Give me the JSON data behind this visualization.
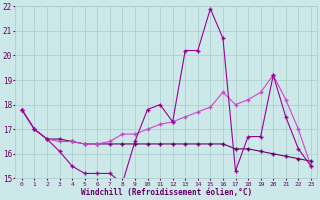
{
  "xlabel": "Windchill (Refroidissement éolien,°C)",
  "x": [
    0,
    1,
    2,
    3,
    4,
    5,
    6,
    7,
    8,
    9,
    10,
    11,
    12,
    13,
    14,
    15,
    16,
    17,
    18,
    19,
    20,
    21,
    22,
    23
  ],
  "line1": [
    17.8,
    17.0,
    16.6,
    16.1,
    15.5,
    15.2,
    15.2,
    15.2,
    14.8,
    16.5,
    17.8,
    18.0,
    17.3,
    20.2,
    20.2,
    21.9,
    20.7,
    15.3,
    16.7,
    16.7,
    19.2,
    17.5,
    16.2,
    15.5
  ],
  "line2": [
    17.8,
    17.0,
    16.6,
    16.5,
    16.5,
    16.4,
    16.4,
    16.5,
    16.8,
    16.8,
    17.0,
    17.2,
    17.3,
    17.5,
    17.7,
    17.9,
    18.5,
    18.0,
    18.2,
    18.5,
    19.2,
    18.2,
    17.0,
    15.5
  ],
  "line3": [
    17.8,
    17.0,
    16.6,
    16.6,
    16.5,
    16.4,
    16.4,
    16.4,
    16.4,
    16.4,
    16.4,
    16.4,
    16.4,
    16.4,
    16.4,
    16.4,
    16.4,
    16.2,
    16.2,
    16.1,
    16.0,
    15.9,
    15.8,
    15.7
  ],
  "line_color1": "#990099",
  "line_color2": "#cc44cc",
  "line_color3": "#660066",
  "bg_color": "#cce8e8",
  "grid_color": "#aacccc",
  "text_color": "#660066",
  "ylim": [
    15,
    22
  ],
  "yticks": [
    15,
    16,
    17,
    18,
    19,
    20,
    21,
    22
  ],
  "marker": "+",
  "markersize": 3,
  "linewidth": 0.8
}
